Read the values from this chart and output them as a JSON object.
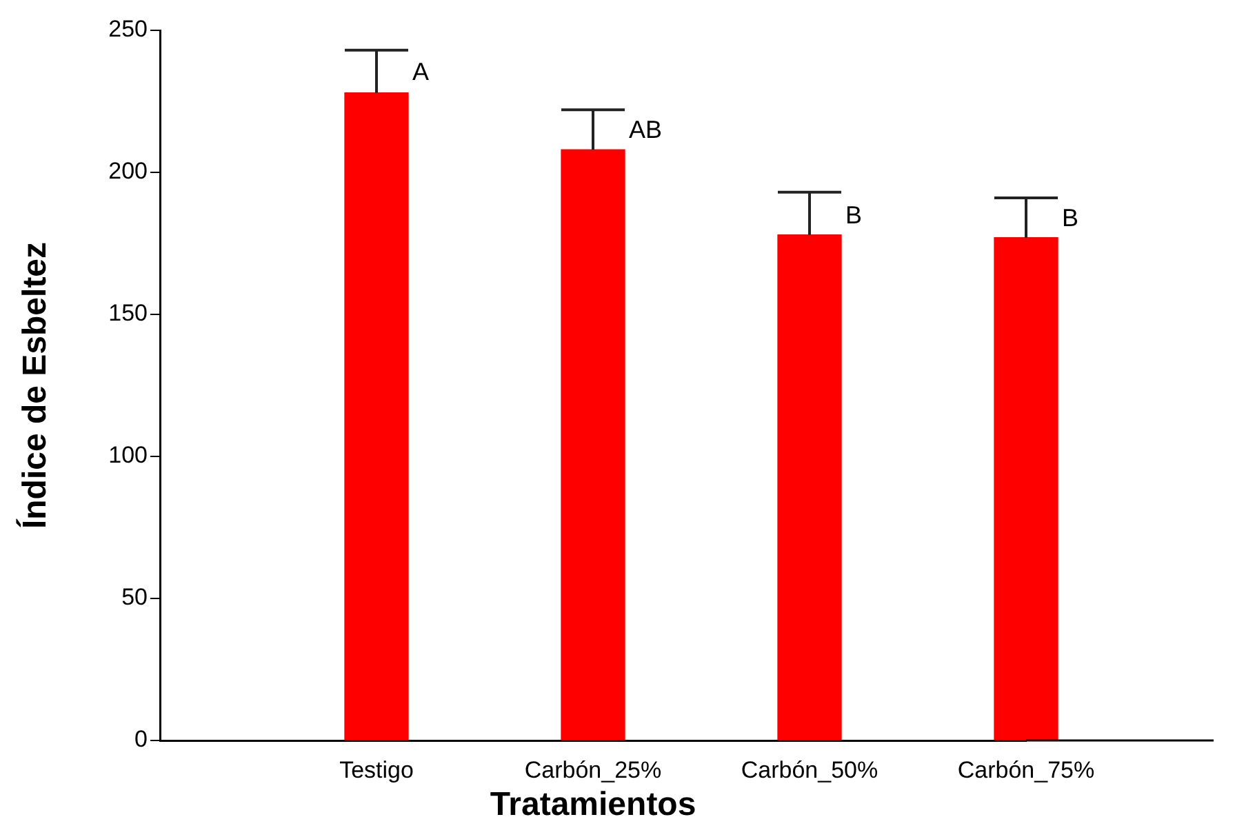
{
  "chart_data": {
    "type": "bar",
    "xlabel": "Tratamientos",
    "ylabel": "Índice de Esbeltez",
    "categories": [
      null,
      "Testigo",
      "Carbón_25%",
      "Carbón_50%",
      "Carbón_75%"
    ],
    "values": [
      null,
      228,
      208,
      178,
      177
    ],
    "errors": [
      null,
      [
        228,
        243
      ],
      [
        208,
        222
      ],
      [
        178,
        193
      ],
      [
        177,
        191
      ]
    ],
    "color": "#ff0000",
    "ylim": [
      0,
      250
    ],
    "yticks": [
      0,
      50,
      100,
      150,
      200,
      250
    ],
    "grid": false,
    "annotations": [
      {
        "text": "A",
        "x": "Testigo",
        "y": 235
      },
      {
        "text": "AB",
        "x": "Carbón_25%",
        "y": 214.5
      },
      {
        "text": "B",
        "x": "Carbón_50%",
        "y": 184.5
      },
      {
        "text": "B",
        "x": "Carbón_75%",
        "y": 183.5
      }
    ]
  }
}
